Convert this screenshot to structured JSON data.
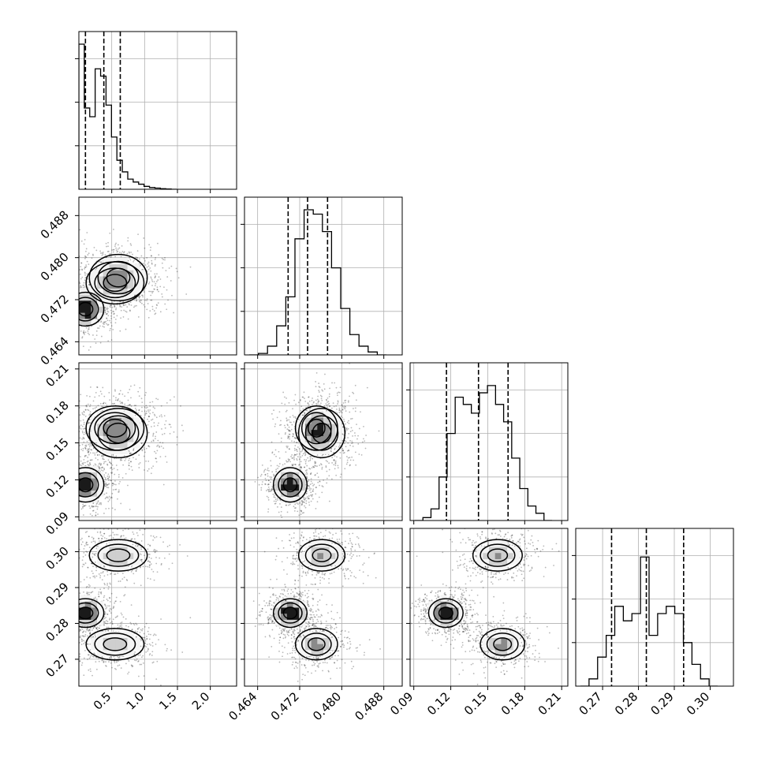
{
  "chart_data": {
    "type": "corner",
    "grid": true,
    "title": "",
    "parameters": [
      {
        "name": "",
        "range": [
          0.0,
          2.4
        ],
        "ticks": [
          0.5,
          1.0,
          1.5,
          2.0
        ],
        "tick_labels": [
          "0.5",
          "1.0",
          "1.5",
          "2.0"
        ],
        "quantiles": [
          0.1,
          0.38,
          0.63
        ]
      },
      {
        "name": "",
        "range": [
          0.4615,
          0.4915
        ],
        "ticks": [
          0.464,
          0.472,
          0.48,
          0.488
        ],
        "tick_labels": [
          "0.464",
          "0.472",
          "0.480",
          "0.488"
        ],
        "quantiles": [
          0.4698,
          0.4735,
          0.4773
        ]
      },
      {
        "name": "",
        "range": [
          0.087,
          0.215
        ],
        "ticks": [
          0.09,
          0.12,
          0.15,
          0.18,
          0.21
        ],
        "tick_labels": [
          "0.09",
          "0.12",
          "0.15",
          "0.18",
          "0.21"
        ],
        "quantiles": [
          0.1165,
          0.1425,
          0.1665
        ]
      },
      {
        "name": "",
        "range": [
          0.2625,
          0.3065
        ],
        "ticks": [
          0.27,
          0.28,
          0.29,
          0.3
        ],
        "tick_labels": [
          "0.27",
          "0.28",
          "0.29",
          "0.30"
        ],
        "quantiles": [
          0.2725,
          0.2822,
          0.2926
        ]
      }
    ],
    "histograms": [
      {
        "param": 0,
        "values": [
          1.0,
          0.56,
          0.5,
          0.83,
          0.78,
          0.58,
          0.36,
          0.2,
          0.12,
          0.07,
          0.05,
          0.035,
          0.02,
          0.012,
          0.008,
          0.004,
          0.002,
          0.0
        ]
      },
      {
        "param": 1,
        "values": [
          0.0,
          0.01,
          0.06,
          0.2,
          0.4,
          0.8,
          1.0,
          0.97,
          0.85,
          0.6,
          0.32,
          0.14,
          0.06,
          0.02,
          0.0
        ]
      },
      {
        "param": 2,
        "values": [
          0.0,
          0.02,
          0.08,
          0.3,
          0.6,
          0.85,
          0.8,
          0.74,
          0.88,
          0.93,
          0.8,
          0.68,
          0.43,
          0.22,
          0.1,
          0.05,
          0.0
        ]
      },
      {
        "param": 3,
        "values": [
          0.0,
          0.05,
          0.2,
          0.35,
          0.55,
          0.45,
          0.5,
          0.89,
          0.35,
          0.5,
          0.55,
          0.5,
          0.3,
          0.15,
          0.05,
          0.0
        ]
      }
    ],
    "modes": [
      {
        "weight": 0.4,
        "mean": [
          0.1,
          0.4702,
          0.116,
          0.2829
        ],
        "sd": [
          0.14,
          0.0016,
          0.007,
          0.002
        ]
      },
      {
        "weight": 0.3,
        "mean": [
          0.6,
          0.4762,
          0.158,
          0.299
        ],
        "sd": [
          0.22,
          0.0022,
          0.01,
          0.0022
        ]
      },
      {
        "weight": 0.3,
        "mean": [
          0.55,
          0.4752,
          0.162,
          0.2742
        ],
        "sd": [
          0.22,
          0.002,
          0.009,
          0.0022
        ]
      }
    ]
  }
}
